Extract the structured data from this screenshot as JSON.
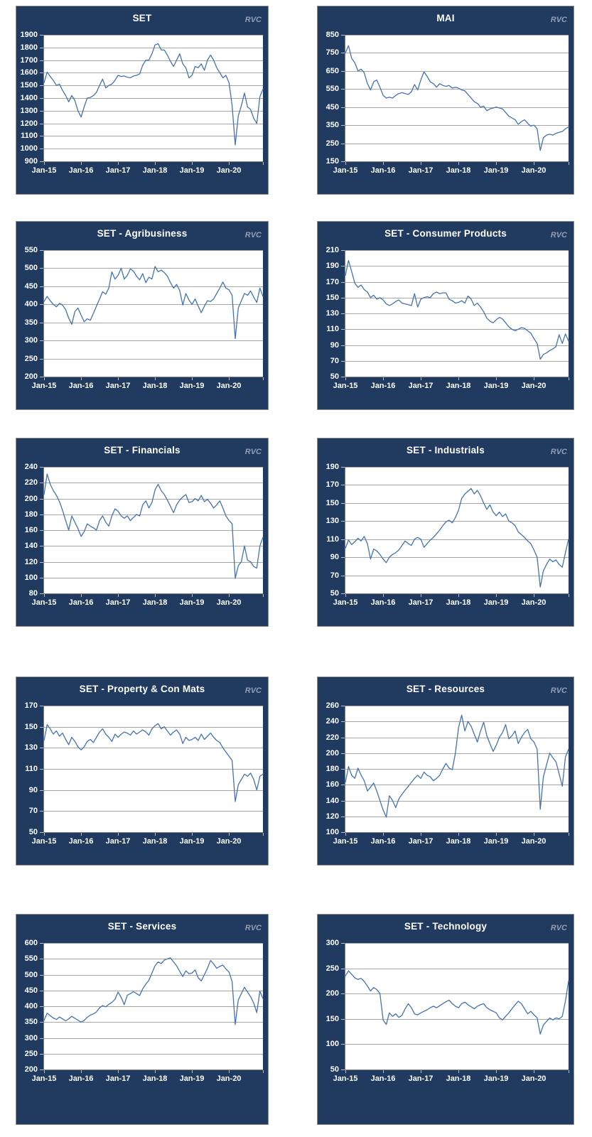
{
  "branding": {
    "watermark": "RVC"
  },
  "colors": {
    "page_bg": "#ffffff",
    "panel_bg": "#203a60",
    "panel_border": "#8f8f8f",
    "plot_bg": "#ffffff",
    "grid_line": "#a6a6a6",
    "axis_line": "#7f7f7f",
    "tick_color": "#b8bfcc",
    "title_text": "#ffffff",
    "axis_text": "#ffffff",
    "watermark_text": "#939fb4",
    "series_line": "#4472b4"
  },
  "x_axis": {
    "labels": [
      "Jan-15",
      "Jan-16",
      "Jan-17",
      "Jan-18",
      "Jan-19",
      "Jan-20"
    ]
  },
  "chart_data": [
    {
      "type": "line",
      "title": "SET",
      "x_start": "Jan-2015",
      "x_end": "Dec-2020",
      "x_freq": "monthly",
      "xtick_labels": [
        "Jan-15",
        "Jan-16",
        "Jan-17",
        "Jan-18",
        "Jan-19",
        "Jan-20"
      ],
      "ylim": [
        900,
        1900
      ],
      "ytick_step": 100,
      "ytick_labels": [
        "1900",
        "1800",
        "1700",
        "1600",
        "1500",
        "1400",
        "1300",
        "1200",
        "1100",
        "1000",
        "900"
      ],
      "values": [
        1520,
        1605,
        1570,
        1540,
        1500,
        1510,
        1460,
        1420,
        1370,
        1420,
        1380,
        1300,
        1250,
        1330,
        1400,
        1405,
        1420,
        1445,
        1500,
        1550,
        1480,
        1500,
        1510,
        1540,
        1580,
        1570,
        1575,
        1565,
        1560,
        1575,
        1580,
        1590,
        1660,
        1700,
        1700,
        1750,
        1820,
        1830,
        1780,
        1780,
        1740,
        1690,
        1650,
        1700,
        1750,
        1670,
        1640,
        1560,
        1580,
        1650,
        1640,
        1670,
        1620,
        1700,
        1740,
        1700,
        1640,
        1600,
        1560,
        1580,
        1520,
        1340,
        1030,
        1260,
        1340,
        1440,
        1330,
        1310,
        1240,
        1200,
        1410,
        1470
      ]
    },
    {
      "type": "line",
      "title": "MAI",
      "x_start": "Jan-2015",
      "x_end": "Dec-2020",
      "x_freq": "monthly",
      "xtick_labels": [
        "Jan-15",
        "Jan-16",
        "Jan-17",
        "Jan-18",
        "Jan-19",
        "Jan-20"
      ],
      "ylim": [
        150,
        850
      ],
      "ytick_step": 100,
      "ytick_labels": [
        "850",
        "750",
        "650",
        "550",
        "450",
        "350",
        "250",
        "150"
      ],
      "values": [
        750,
        790,
        720,
        695,
        650,
        660,
        640,
        580,
        545,
        590,
        600,
        560,
        515,
        500,
        505,
        500,
        515,
        525,
        530,
        525,
        520,
        535,
        575,
        545,
        600,
        645,
        620,
        590,
        580,
        560,
        580,
        570,
        565,
        570,
        555,
        560,
        555,
        545,
        540,
        520,
        500,
        480,
        470,
        450,
        455,
        430,
        440,
        445,
        450,
        445,
        440,
        420,
        400,
        390,
        380,
        355,
        370,
        380,
        360,
        345,
        350,
        330,
        210,
        280,
        295,
        300,
        295,
        305,
        310,
        315,
        330,
        340
      ]
    },
    {
      "type": "line",
      "title": "SET - Agribusiness",
      "x_start": "Jan-2015",
      "x_end": "Dec-2020",
      "x_freq": "monthly",
      "xtick_labels": [
        "Jan-15",
        "Jan-16",
        "Jan-17",
        "Jan-18",
        "Jan-19",
        "Jan-20"
      ],
      "ylim": [
        200,
        550
      ],
      "ytick_step": 50,
      "ytick_labels": [
        "550",
        "500",
        "450",
        "400",
        "350",
        "300",
        "250",
        "200"
      ],
      "values": [
        408,
        422,
        410,
        400,
        393,
        403,
        398,
        385,
        362,
        345,
        380,
        390,
        370,
        352,
        360,
        356,
        375,
        395,
        415,
        435,
        428,
        445,
        490,
        470,
        480,
        500,
        470,
        480,
        498,
        492,
        478,
        468,
        485,
        460,
        475,
        470,
        505,
        490,
        495,
        488,
        478,
        460,
        445,
        455,
        438,
        398,
        430,
        412,
        400,
        415,
        395,
        377,
        395,
        410,
        408,
        415,
        430,
        445,
        462,
        445,
        440,
        425,
        305,
        390,
        410,
        430,
        425,
        437,
        420,
        405,
        445,
        422
      ]
    },
    {
      "type": "line",
      "title": "SET - Consumer Products",
      "x_start": "Jan-2015",
      "x_end": "Dec-2020",
      "x_freq": "monthly",
      "xtick_labels": [
        "Jan-15",
        "Jan-16",
        "Jan-17",
        "Jan-18",
        "Jan-19",
        "Jan-20"
      ],
      "ylim": [
        50,
        210
      ],
      "ytick_step": 20,
      "ytick_labels": [
        "210",
        "190",
        "170",
        "150",
        "130",
        "110",
        "90",
        "70",
        "50"
      ],
      "values": [
        178,
        197,
        183,
        168,
        163,
        166,
        160,
        157,
        150,
        153,
        148,
        150,
        147,
        142,
        140,
        142,
        145,
        147,
        143,
        142,
        141,
        140,
        155,
        138,
        148,
        150,
        151,
        150,
        155,
        157,
        155,
        156,
        156,
        148,
        146,
        143,
        144,
        146,
        143,
        152,
        148,
        140,
        143,
        138,
        132,
        124,
        120,
        118,
        122,
        125,
        123,
        118,
        113,
        110,
        108,
        110,
        112,
        111,
        108,
        105,
        98,
        92,
        72,
        78,
        80,
        83,
        85,
        88,
        103,
        92,
        104,
        95
      ]
    },
    {
      "type": "line",
      "title": "SET - Financials",
      "x_start": "Jan-2015",
      "x_end": "Dec-2020",
      "x_freq": "monthly",
      "xtick_labels": [
        "Jan-15",
        "Jan-16",
        "Jan-17",
        "Jan-18",
        "Jan-19",
        "Jan-20"
      ],
      "ylim": [
        80,
        240
      ],
      "ytick_step": 20,
      "ytick_labels": [
        "240",
        "220",
        "200",
        "180",
        "160",
        "140",
        "120",
        "100",
        "80"
      ],
      "values": [
        205,
        231,
        218,
        210,
        204,
        196,
        185,
        172,
        160,
        178,
        170,
        162,
        152,
        158,
        168,
        165,
        163,
        160,
        172,
        178,
        170,
        165,
        178,
        187,
        184,
        178,
        175,
        178,
        172,
        176,
        180,
        178,
        192,
        197,
        188,
        195,
        211,
        218,
        210,
        205,
        198,
        190,
        182,
        192,
        198,
        202,
        205,
        195,
        196,
        200,
        197,
        204,
        196,
        199,
        194,
        188,
        192,
        197,
        188,
        178,
        172,
        168,
        99,
        115,
        120,
        140,
        122,
        120,
        114,
        112,
        140,
        151
      ]
    },
    {
      "type": "line",
      "title": "SET - Industrials",
      "x_start": "Jan-2015",
      "x_end": "Dec-2020",
      "x_freq": "monthly",
      "xtick_labels": [
        "Jan-15",
        "Jan-16",
        "Jan-17",
        "Jan-18",
        "Jan-19",
        "Jan-20"
      ],
      "ylim": [
        50,
        190
      ],
      "ytick_step": 20,
      "ytick_labels": [
        "190",
        "170",
        "150",
        "130",
        "110",
        "90",
        "70",
        "50"
      ],
      "values": [
        100,
        109,
        104,
        107,
        111,
        108,
        113,
        105,
        88,
        99,
        97,
        93,
        88,
        84,
        90,
        93,
        95,
        98,
        103,
        108,
        105,
        103,
        110,
        112,
        110,
        101,
        105,
        109,
        112,
        116,
        120,
        125,
        129,
        131,
        128,
        134,
        142,
        155,
        160,
        163,
        166,
        160,
        164,
        158,
        150,
        143,
        148,
        140,
        136,
        140,
        135,
        138,
        130,
        128,
        125,
        118,
        115,
        112,
        108,
        105,
        98,
        90,
        57,
        75,
        82,
        88,
        85,
        87,
        82,
        79,
        95,
        110
      ]
    },
    {
      "type": "line",
      "title": "SET - Property & Con Mats",
      "x_start": "Jan-2015",
      "x_end": "Dec-2020",
      "x_freq": "monthly",
      "xtick_labels": [
        "Jan-15",
        "Jan-16",
        "Jan-17",
        "Jan-18",
        "Jan-19",
        "Jan-20"
      ],
      "ylim": [
        50,
        170
      ],
      "ytick_step": 20,
      "ytick_labels": [
        "170",
        "150",
        "130",
        "110",
        "90",
        "70",
        "50"
      ],
      "values": [
        137,
        152,
        148,
        143,
        146,
        141,
        144,
        138,
        133,
        140,
        136,
        131,
        128,
        131,
        136,
        138,
        135,
        140,
        145,
        148,
        143,
        140,
        136,
        143,
        140,
        143,
        145,
        144,
        142,
        146,
        143,
        145,
        147,
        145,
        142,
        148,
        151,
        153,
        148,
        150,
        146,
        142,
        145,
        147,
        143,
        134,
        140,
        137,
        138,
        140,
        137,
        143,
        138,
        141,
        144,
        140,
        137,
        135,
        130,
        126,
        122,
        118,
        79,
        95,
        100,
        105,
        103,
        106,
        100,
        90,
        103,
        105
      ]
    },
    {
      "type": "line",
      "title": "SET - Resources",
      "x_start": "Jan-2015",
      "x_end": "Dec-2020",
      "x_freq": "monthly",
      "xtick_labels": [
        "Jan-15",
        "Jan-16",
        "Jan-17",
        "Jan-18",
        "Jan-19",
        "Jan-20"
      ],
      "ylim": [
        100,
        260
      ],
      "ytick_step": 20,
      "ytick_labels": [
        "260",
        "240",
        "220",
        "200",
        "180",
        "160",
        "140",
        "120",
        "100"
      ],
      "values": [
        163,
        183,
        172,
        168,
        181,
        172,
        165,
        152,
        157,
        162,
        152,
        140,
        128,
        119,
        146,
        140,
        131,
        142,
        148,
        153,
        158,
        163,
        168,
        172,
        168,
        176,
        172,
        170,
        165,
        168,
        172,
        180,
        187,
        181,
        179,
        200,
        232,
        248,
        228,
        240,
        234,
        224,
        214,
        228,
        239,
        222,
        212,
        202,
        210,
        220,
        226,
        236,
        218,
        222,
        228,
        212,
        220,
        226,
        230,
        218,
        214,
        205,
        129,
        170,
        185,
        200,
        194,
        189,
        174,
        158,
        195,
        205
      ]
    },
    {
      "type": "line",
      "title": "SET - Services",
      "x_start": "Jan-2015",
      "x_end": "Dec-2020",
      "x_freq": "monthly",
      "xtick_labels": [
        "Jan-15",
        "Jan-16",
        "Jan-17",
        "Jan-18",
        "Jan-19",
        "Jan-20"
      ],
      "ylim": [
        200,
        600
      ],
      "ytick_step": 50,
      "ytick_labels": [
        "600",
        "550",
        "500",
        "450",
        "400",
        "350",
        "300",
        "250",
        "200"
      ],
      "values": [
        355,
        378,
        370,
        363,
        358,
        366,
        360,
        354,
        360,
        368,
        362,
        356,
        350,
        355,
        365,
        372,
        376,
        382,
        395,
        402,
        398,
        406,
        412,
        422,
        445,
        428,
        405,
        435,
        440,
        446,
        440,
        434,
        455,
        470,
        482,
        505,
        528,
        540,
        535,
        546,
        550,
        553,
        540,
        528,
        510,
        494,
        512,
        503,
        505,
        515,
        490,
        480,
        500,
        520,
        545,
        534,
        520,
        526,
        530,
        518,
        508,
        478,
        342,
        420,
        440,
        460,
        445,
        430,
        410,
        380,
        448,
        424
      ]
    },
    {
      "type": "line",
      "title": "SET - Technology",
      "x_start": "Jan-2015",
      "x_end": "Dec-2020",
      "x_freq": "monthly",
      "xtick_labels": [
        "Jan-15",
        "Jan-16",
        "Jan-17",
        "Jan-18",
        "Jan-19",
        "Jan-20"
      ],
      "ylim": [
        50,
        300
      ],
      "ytick_step": 50,
      "ytick_labels": [
        "300",
        "250",
        "200",
        "150",
        "100",
        "50"
      ],
      "values": [
        235,
        245,
        238,
        231,
        228,
        230,
        224,
        215,
        205,
        212,
        208,
        200,
        148,
        139,
        162,
        155,
        160,
        153,
        157,
        170,
        180,
        172,
        160,
        158,
        162,
        165,
        168,
        172,
        175,
        172,
        176,
        180,
        184,
        187,
        180,
        175,
        172,
        180,
        183,
        178,
        174,
        170,
        175,
        178,
        180,
        172,
        168,
        165,
        162,
        152,
        148,
        155,
        162,
        170,
        178,
        185,
        180,
        170,
        160,
        165,
        158,
        152,
        120,
        138,
        145,
        152,
        148,
        152,
        150,
        155,
        185,
        225
      ]
    }
  ]
}
